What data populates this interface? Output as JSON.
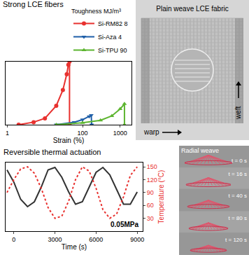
{
  "chart_data": [
    {
      "type": "line",
      "title": "Strong LCE fibers",
      "x_label": "Strain (%)",
      "log": "x",
      "xlim": [
        0.9,
        2000
      ],
      "xticks": [
        1,
        100,
        1000
      ],
      "ylim": [
        0,
        100
      ],
      "tick_labels": "x",
      "legend_title": "Toughness MJ/m³",
      "legend": "top right",
      "series": [
        {
          "name": "Si-RM82 8",
          "color": "#e8312f",
          "marker": "circle",
          "line_style": "solid",
          "x": [
            2,
            5,
            10,
            20,
            30,
            38,
            42,
            45,
            45
          ],
          "values": [
            0,
            4,
            10,
            30,
            55,
            80,
            95,
            100,
            0
          ]
        },
        {
          "name": "Si-Aza 4",
          "color": "#1f5fa8",
          "marker": "triangle-down",
          "line_style": "solid",
          "x": [
            20,
            60,
            100,
            150,
            170,
            175
          ],
          "values": [
            0,
            4,
            8,
            13,
            15,
            0
          ]
        },
        {
          "name": "Si-TPU 90",
          "color": "#5db530",
          "marker": "triangle-up",
          "line_style": "solid",
          "x": [
            20,
            100,
            300,
            600,
            1000,
            1300,
            1300
          ],
          "values": [
            0,
            3,
            7,
            14,
            25,
            33,
            0
          ]
        }
      ]
    },
    {
      "type": "line",
      "title": "Reversible thermal actuation",
      "x_label": "Time (s)",
      "y2_label": "Temperature (°C)",
      "x": [
        -500,
        0,
        500,
        1000,
        1500,
        2000,
        2500,
        3000,
        3500,
        4000,
        4500,
        5000,
        5500,
        6000,
        6500,
        7000,
        7500,
        8000,
        8500,
        9000
      ],
      "xlim": [
        -600,
        9400
      ],
      "xticks": [
        0,
        3000,
        6000,
        9000
      ],
      "ylim": [
        -40,
        100
      ],
      "yticks": [],
      "y2lim": [
        0,
        160
      ],
      "y2ticks": [
        30,
        60,
        90,
        120,
        150
      ],
      "annotations": [
        "0.05MPa"
      ],
      "series": [
        {
          "color": "#333333",
          "line_style": "solid",
          "values": [
            85,
            60,
            25,
            10,
            20,
            50,
            85,
            90,
            70,
            40,
            15,
            20,
            50,
            80,
            90,
            75,
            45,
            15,
            15,
            40
          ]
        },
        {
          "color": "#e8312f",
          "line_style": "dot",
          "axis": "y2",
          "values": [
            90,
            120,
            145,
            150,
            135,
            100,
            55,
            30,
            35,
            70,
            120,
            150,
            140,
            100,
            50,
            30,
            40,
            80,
            130,
            150
          ]
        }
      ]
    }
  ],
  "photos": [
    {
      "title": "Plain weave LCE fabric",
      "labels": [
        "warp",
        "weft"
      ]
    },
    {
      "title": "Radial weave",
      "labels": [
        "t = 0 s",
        "t = 16 s",
        "t = 40 s",
        "t = 80 s",
        "t = 120 s"
      ]
    }
  ]
}
